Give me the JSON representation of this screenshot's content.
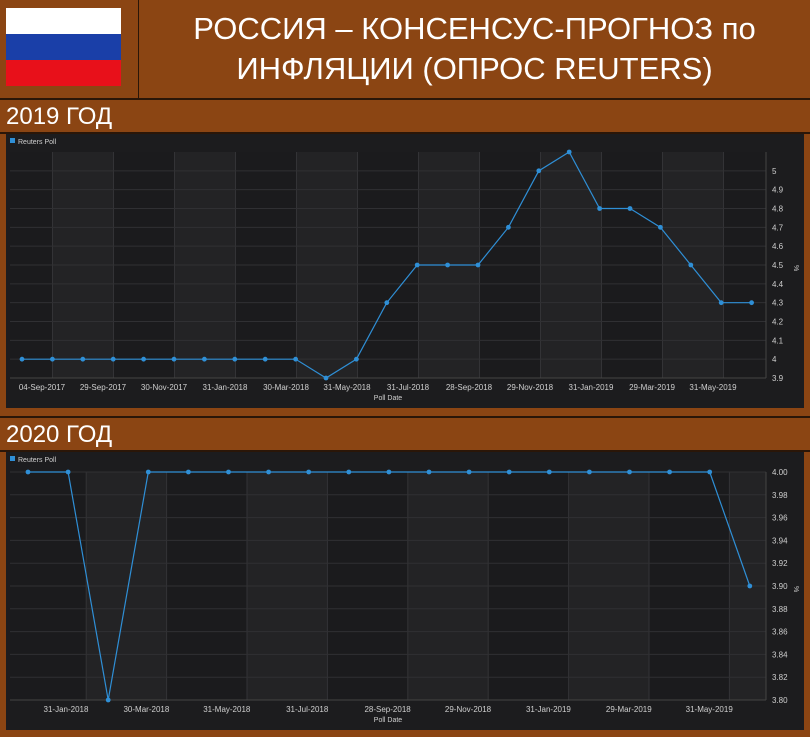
{
  "header": {
    "title_line1": "РОССИЯ – КОНСЕНСУС-ПРОГНОЗ по",
    "title_line2": "ИНФЛЯЦИИ (ОПРОС REUTERS)",
    "flag_colors": [
      "#ffffff",
      "#1a3fa8",
      "#e8101a"
    ]
  },
  "sections": [
    {
      "title": "2019 ГОД"
    },
    {
      "title": "2020 ГОД"
    }
  ],
  "chart_data": [
    {
      "type": "line",
      "title": "",
      "legend": "Reuters Poll",
      "legend_position": "top-left",
      "xlabel": "Poll Date",
      "ylabel": "%",
      "ylim": [
        3.9,
        5.1
      ],
      "yticks": [
        3.9,
        4.0,
        4.1,
        4.2,
        4.3,
        4.4,
        4.5,
        4.6,
        4.7,
        4.8,
        4.9,
        5.0
      ],
      "xticks": [
        "04-Sep-2017",
        "29-Sep-2017",
        "30-Nov-2017",
        "31-Jan-2018",
        "30-Mar-2018",
        "31-May-2018",
        "31-Jul-2018",
        "28-Sep-2018",
        "29-Nov-2018",
        "31-Jan-2019",
        "29-Mar-2019",
        "31-May-2019"
      ],
      "series": [
        {
          "name": "Reuters Poll",
          "color": "#2f8fd6",
          "values": [
            4.0,
            4.0,
            4.0,
            4.0,
            4.0,
            4.0,
            4.0,
            4.0,
            4.0,
            4.0,
            3.9,
            4.0,
            4.3,
            4.5,
            4.5,
            4.5,
            4.7,
            5.0,
            5.1,
            4.8,
            4.8,
            4.7,
            4.5,
            4.3,
            4.3
          ]
        }
      ],
      "grid": true
    },
    {
      "type": "line",
      "title": "",
      "legend": "Reuters Poll",
      "legend_position": "top-left",
      "xlabel": "Poll Date",
      "ylabel": "%",
      "ylim": [
        3.8,
        4.0
      ],
      "yticks": [
        "3.80",
        "3.82",
        "3.84",
        "3.86",
        "3.88",
        "3.90",
        "3.92",
        "3.94",
        "3.96",
        "3.98",
        "4.00"
      ],
      "xticks": [
        "31-Jan-2018",
        "30-Mar-2018",
        "31-May-2018",
        "31-Jul-2018",
        "28-Sep-2018",
        "29-Nov-2018",
        "31-Jan-2019",
        "29-Mar-2019",
        "31-May-2019"
      ],
      "series": [
        {
          "name": "Reuters Poll",
          "color": "#2f8fd6",
          "values": [
            4.0,
            4.0,
            3.8,
            4.0,
            4.0,
            4.0,
            4.0,
            4.0,
            4.0,
            4.0,
            4.0,
            4.0,
            4.0,
            4.0,
            4.0,
            4.0,
            4.0,
            4.0,
            3.9
          ]
        }
      ],
      "grid": true
    }
  ]
}
